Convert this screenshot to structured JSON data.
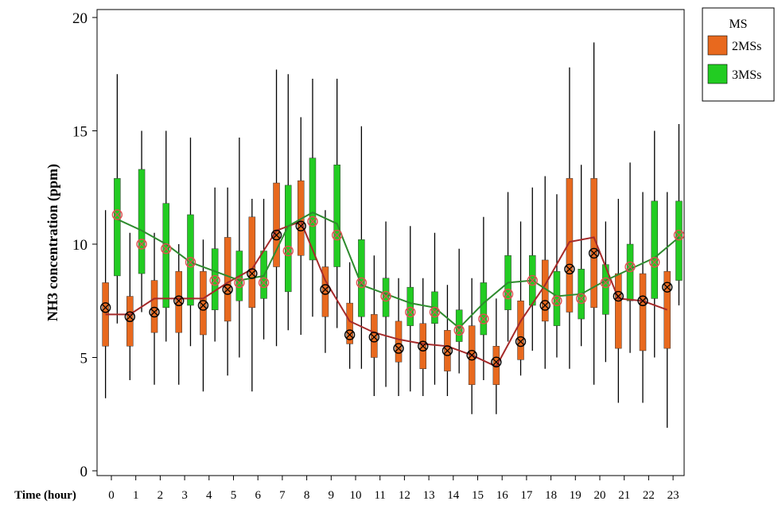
{
  "chart_data": {
    "type": "box",
    "title": "",
    "xlabel": "Time (hour)",
    "ylabel": "NH3 concentration (ppm)",
    "ylim": [
      0,
      20
    ],
    "yticks": [
      0,
      5,
      10,
      15,
      20
    ],
    "categories": [
      "0",
      "1",
      "2",
      "3",
      "4",
      "5",
      "6",
      "7",
      "8",
      "9",
      "10",
      "11",
      "12",
      "13",
      "14",
      "15",
      "16",
      "17",
      "18",
      "19",
      "20",
      "21",
      "22",
      "23"
    ],
    "legend": {
      "title": "MS",
      "position": "top-right"
    },
    "series": [
      {
        "name": "2MSs",
        "color": "#E8691E",
        "line_color": "#A52A2A",
        "marker_color": "#000000",
        "mean": [
          7.2,
          6.8,
          7.0,
          7.5,
          7.3,
          8.0,
          8.7,
          10.4,
          10.8,
          8.0,
          6.0,
          5.9,
          5.4,
          5.5,
          5.3,
          5.1,
          4.8,
          5.7,
          7.3,
          8.9,
          9.6,
          7.7,
          7.5,
          8.1
        ],
        "median": [
          6.9,
          6.9,
          7.6,
          7.6,
          7.6,
          8.3,
          8.9,
          10.6,
          11.0,
          8.4,
          6.6,
          6.1,
          5.8,
          5.6,
          5.5,
          5.1,
          4.6,
          6.6,
          8.2,
          10.1,
          10.3,
          7.6,
          7.5,
          7.1
        ],
        "q1": [
          5.5,
          5.5,
          6.1,
          6.1,
          6.0,
          6.6,
          7.2,
          9.0,
          9.5,
          6.8,
          5.6,
          5.0,
          4.8,
          4.5,
          4.4,
          3.8,
          3.8,
          4.9,
          6.6,
          7.0,
          7.2,
          5.4,
          5.3,
          5.4
        ],
        "q3": [
          8.3,
          7.7,
          8.4,
          8.8,
          8.8,
          10.3,
          11.2,
          12.7,
          12.8,
          9.0,
          7.4,
          6.9,
          6.6,
          6.5,
          6.2,
          6.4,
          5.5,
          7.5,
          9.3,
          12.9,
          12.9,
          8.7,
          8.7,
          8.8
        ],
        "whisker_low": [
          3.2,
          4.0,
          3.8,
          3.8,
          3.5,
          4.2,
          3.5,
          5.5,
          6.0,
          5.2,
          4.5,
          3.3,
          3.3,
          3.3,
          3.3,
          2.5,
          2.5,
          4.2,
          4.5,
          4.5,
          3.8,
          3.0,
          3.0,
          1.9
        ],
        "whisker_high": [
          11.5,
          10.5,
          10.5,
          10.0,
          10.2,
          12.5,
          12.0,
          17.7,
          15.6,
          11.5,
          9.2,
          9.5,
          8.5,
          8.5,
          8.2,
          8.5,
          7.6,
          11.0,
          13.0,
          17.8,
          18.9,
          12.0,
          12.3,
          12.3
        ]
      },
      {
        "name": "3MSs",
        "color": "#22CC22",
        "line_color": "#2E8B2E",
        "marker_color": "#E05050",
        "mean": [
          11.3,
          10.0,
          9.8,
          9.2,
          8.4,
          8.3,
          8.3,
          9.7,
          11.0,
          10.4,
          8.3,
          7.7,
          7.0,
          7.0,
          6.2,
          6.7,
          7.8,
          8.4,
          7.5,
          7.6,
          8.3,
          9.0,
          9.2,
          10.4
        ],
        "median": [
          11.1,
          10.6,
          10.0,
          9.2,
          8.8,
          8.4,
          8.6,
          10.8,
          11.4,
          10.9,
          8.2,
          7.8,
          7.4,
          7.2,
          6.3,
          7.4,
          8.3,
          8.4,
          7.7,
          7.8,
          8.4,
          8.9,
          9.4,
          10.3
        ],
        "q1": [
          8.6,
          8.7,
          7.2,
          7.3,
          7.1,
          7.5,
          7.6,
          7.9,
          9.3,
          9.0,
          6.8,
          6.8,
          6.4,
          6.5,
          5.7,
          6.0,
          7.1,
          7.3,
          6.4,
          6.7,
          6.9,
          7.5,
          7.6,
          8.4
        ],
        "q3": [
          12.9,
          13.3,
          11.8,
          11.3,
          9.8,
          9.7,
          9.7,
          12.6,
          13.8,
          13.5,
          10.2,
          8.5,
          8.1,
          7.9,
          7.1,
          8.3,
          9.5,
          9.5,
          8.8,
          8.9,
          9.1,
          10.0,
          11.9,
          11.9
        ],
        "whisker_low": [
          6.5,
          7.0,
          5.7,
          5.5,
          5.7,
          5.0,
          5.8,
          6.2,
          6.8,
          6.3,
          4.5,
          3.7,
          3.5,
          3.8,
          4.3,
          4.0,
          5.7,
          5.3,
          5.0,
          5.5,
          4.8,
          5.2,
          5.0,
          7.3
        ],
        "whisker_high": [
          17.5,
          15.0,
          15.0,
          14.7,
          12.5,
          14.7,
          12.0,
          17.5,
          17.3,
          17.3,
          15.2,
          11.0,
          10.8,
          10.5,
          9.8,
          11.2,
          12.3,
          12.5,
          12.2,
          13.5,
          11.0,
          13.6,
          15.0,
          15.3
        ]
      }
    ]
  }
}
